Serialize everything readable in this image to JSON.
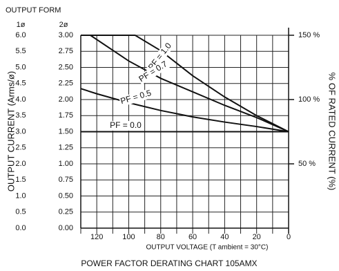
{
  "chart_data": {
    "type": "line",
    "title": "POWER FACTOR DERATING CHART 105AMX",
    "x_label": "OUTPUT VOLTAGE (T ambient = 30°C)",
    "y_label": "OUTPUT CURRENT (Arms/ø)",
    "y2_label": "% OF RATED CURRENT (%)",
    "output_form_label": "OUTPUT FORM",
    "y_1phase_header": "1ø",
    "y_2phase_header": "2ø",
    "xlim": [
      130,
      0
    ],
    "xticks": [
      120,
      100,
      80,
      60,
      40,
      20,
      0
    ],
    "xgrid": [
      130,
      110,
      90,
      70,
      50,
      30,
      10
    ],
    "ylim": [
      0,
      3
    ],
    "yticks": [
      {
        "value": 0,
        "label": "0.00"
      },
      {
        "value": 0.25,
        "label": "0.25"
      },
      {
        "value": 0.5,
        "label": "0.50"
      },
      {
        "value": 0.75,
        "label": "0.75"
      },
      {
        "value": 1,
        "label": "1.00"
      },
      {
        "value": 1.25,
        "label": "1.25"
      },
      {
        "value": 1.5,
        "label": "1.50"
      },
      {
        "value": 1.75,
        "label": "1.75"
      },
      {
        "value": 2,
        "label": "2.00"
      },
      {
        "value": 2.25,
        "label": "2.25"
      },
      {
        "value": 2.5,
        "label": "2.50"
      },
      {
        "value": 2.75,
        "label": "2.75"
      },
      {
        "value": 3,
        "label": "3.00"
      }
    ],
    "yticks_1phase": [
      {
        "value": 0,
        "label": "0.0"
      },
      {
        "value": 0.25,
        "label": "0.5"
      },
      {
        "value": 0.5,
        "label": "1.0"
      },
      {
        "value": 0.75,
        "label": "1.5"
      },
      {
        "value": 1,
        "label": "2.0"
      },
      {
        "value": 1.25,
        "label": "2.5"
      },
      {
        "value": 1.5,
        "label": "3.0"
      },
      {
        "value": 1.75,
        "label": "3.5"
      },
      {
        "value": 2,
        "label": "4.0"
      },
      {
        "value": 2.25,
        "label": "4.5"
      },
      {
        "value": 2.5,
        "label": "5.0"
      },
      {
        "value": 2.75,
        "label": "5.5"
      },
      {
        "value": 3,
        "label": "6.0"
      }
    ],
    "y2lim": [
      0,
      150
    ],
    "y2ticks": [
      {
        "value": 50,
        "label": "50 %"
      },
      {
        "value": 100,
        "label": "100 %"
      },
      {
        "value": 150,
        "label": "150 %"
      }
    ],
    "grid": true,
    "series": [
      {
        "name": "PF = 1.0",
        "color": "#111111",
        "x": [
          130,
          96,
          80,
          60,
          40,
          20,
          0
        ],
        "values": [
          3.0,
          3.0,
          2.76,
          2.37,
          2.04,
          1.75,
          1.5
        ]
      },
      {
        "name": "PF = 0.7",
        "color": "#111111",
        "x": [
          124,
          100,
          80,
          60,
          40,
          20,
          0
        ],
        "values": [
          3.0,
          2.6,
          2.33,
          2.12,
          1.91,
          1.72,
          1.5
        ]
      },
      {
        "name": "PF = 0.5",
        "color": "#111111",
        "x": [
          130,
          120,
          100,
          80,
          60,
          40,
          20,
          0
        ],
        "values": [
          2.17,
          2.09,
          1.95,
          1.83,
          1.73,
          1.65,
          1.58,
          1.5
        ]
      },
      {
        "name": "PF = 0.0",
        "color": "#111111",
        "x": [
          130,
          0
        ],
        "values": [
          1.5,
          1.5
        ]
      }
    ]
  }
}
